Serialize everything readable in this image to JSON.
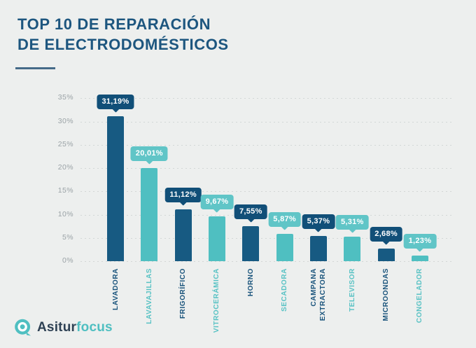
{
  "title": {
    "line1": "TOP 10 DE REPARACIÓN",
    "line2": "DE ELECTRODOMÉSTICOS"
  },
  "brand": {
    "name_primary": "Asitur",
    "name_secondary": "focus",
    "icon": "q-ring-logo-icon"
  },
  "colors": {
    "background": "#EDEFEE",
    "title_text": "#1D567F",
    "bar_dark": "#175A82",
    "bar_teal": "#4FBFC1",
    "tooltip_dark": "#114F78",
    "tooltip_teal": "#60C5C7",
    "label_dark": "#1A547C",
    "label_teal": "#59C2C4",
    "grid": "#D3D7D6",
    "axis_tick_text": "#9AA2A6",
    "brand_dark": "#2E4154",
    "brand_teal": "#4FBFC1"
  },
  "chart_data": {
    "type": "bar",
    "title": "TOP 10 DE REPARACIÓN DE ELECTRODOMÉSTICOS",
    "xlabel": "",
    "ylabel": "",
    "ylim": [
      0,
      35
    ],
    "grid": "dotted-horizontal",
    "legend": "none",
    "bar_color_pattern": [
      "dark",
      "teal"
    ],
    "categories": [
      "LAVADORA",
      "LAVAVAJILLAS",
      "FRIGORÍFICO",
      "VITROCERÁMICA",
      "HORNO",
      "SECADORA",
      "CAMPANA\nEXTRACTORA",
      "TELEVISOR",
      "MICROONDAS",
      "CONGELADOR"
    ],
    "values": [
      31.19,
      20.01,
      11.12,
      9.67,
      7.55,
      5.87,
      5.37,
      5.31,
      2.68,
      1.23
    ],
    "value_labels": [
      "31,19%",
      "20,01%",
      "11,12%",
      "9,67%",
      "7,55%",
      "5,87%",
      "5,37%",
      "5,31%",
      "2,68%",
      "1,23%"
    ],
    "yticks": [
      0,
      5,
      10,
      15,
      20,
      25,
      30,
      35
    ],
    "ytick_labels": [
      "0%",
      "5%",
      "10%",
      "15%",
      "20%",
      "25%",
      "30%",
      "35%"
    ]
  }
}
